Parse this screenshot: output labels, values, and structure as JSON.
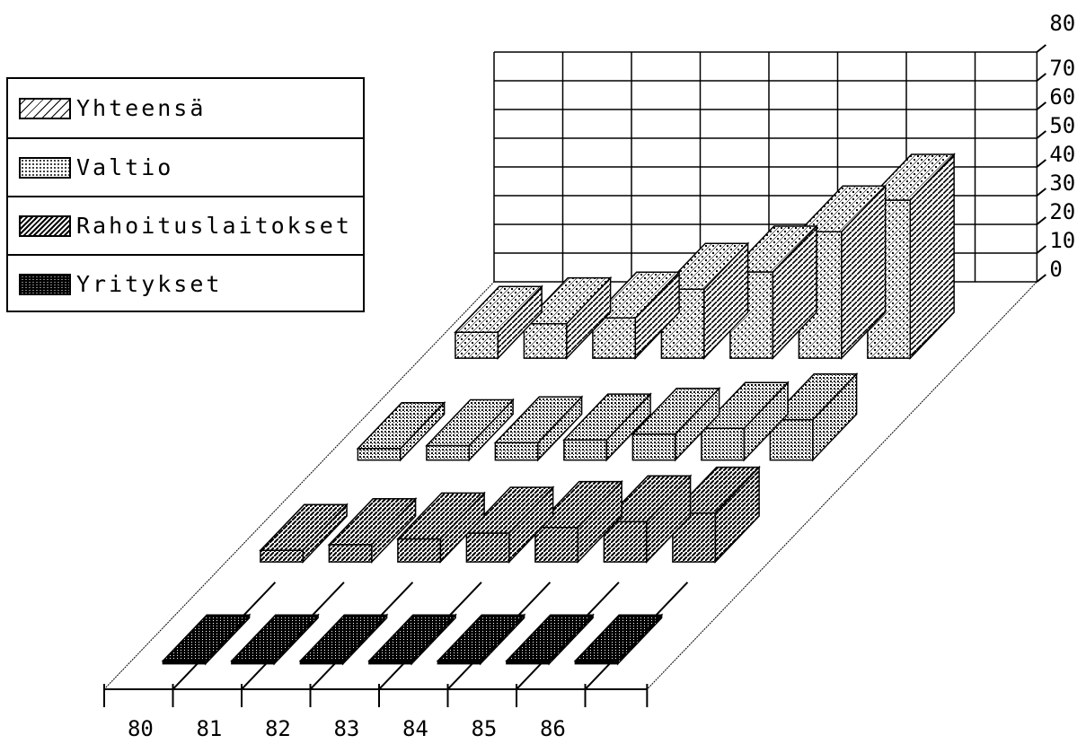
{
  "chart_data": {
    "type": "bar",
    "subtype": "3d-bar",
    "title": "",
    "xlabel": "",
    "ylabel": "",
    "ylim": [
      0,
      80
    ],
    "y_ticks": [
      "80",
      "70",
      "60",
      "50",
      "40",
      "30",
      "20",
      "10",
      "0"
    ],
    "categories": [
      "80",
      "81",
      "82",
      "83",
      "84",
      "85",
      "86"
    ],
    "series": [
      {
        "name": "Yhteensä",
        "values": [
          9,
          12,
          14,
          24,
          30,
          44,
          55
        ]
      },
      {
        "name": "Valtio",
        "values": [
          4,
          5,
          6,
          7,
          9,
          11,
          14
        ]
      },
      {
        "name": "Rahoituslaitokset",
        "values": [
          4,
          6,
          8,
          10,
          12,
          14,
          17
        ]
      },
      {
        "name": "Yritykset",
        "values": [
          1,
          1,
          1,
          1,
          1,
          1,
          1
        ]
      }
    ],
    "grid": true,
    "legend_position": "top-left"
  },
  "colors": {
    "ink": "#000000",
    "background": "#ffffff"
  }
}
